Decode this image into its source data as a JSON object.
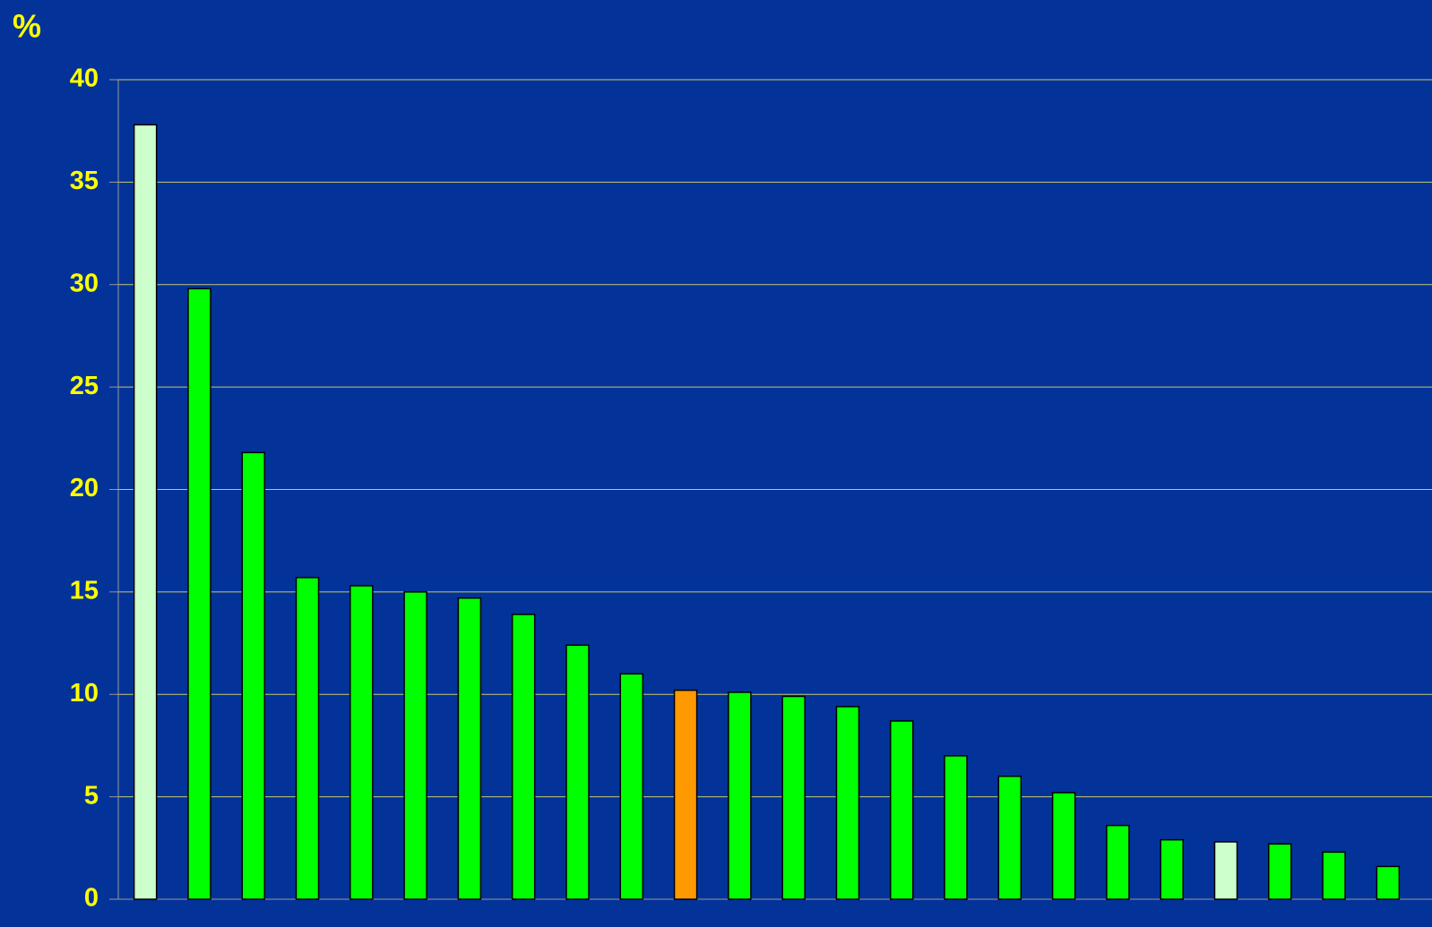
{
  "chart_data": {
    "type": "bar",
    "y_label": "%",
    "categories": [
      null,
      null,
      null,
      null,
      null,
      null,
      null,
      null,
      null,
      null,
      null,
      null,
      null,
      null,
      null,
      null,
      null,
      null,
      null,
      null,
      null,
      null,
      null,
      null
    ],
    "values": [
      37.8,
      29.8,
      21.8,
      15.7,
      15.3,
      15.0,
      14.7,
      13.9,
      12.4,
      11.0,
      10.2,
      10.1,
      9.9,
      9.4,
      8.7,
      7.0,
      6.0,
      5.2,
      3.6,
      2.9,
      2.8,
      2.7,
      2.3,
      1.6
    ],
    "colors": [
      "#ccffcc",
      "#00ff00",
      "#00ff00",
      "#00ff00",
      "#00ff00",
      "#00ff00",
      "#00ff00",
      "#00ff00",
      "#00ff00",
      "#00ff00",
      "#ff9900",
      "#00ff00",
      "#00ff00",
      "#00ff00",
      "#00ff00",
      "#00ff00",
      "#00ff00",
      "#00ff00",
      "#00ff00",
      "#00ff00",
      "#ccffcc",
      "#00ff00",
      "#00ff00",
      "#00ff00"
    ],
    "ylim": [
      0,
      40
    ],
    "yticks": [
      0,
      5,
      10,
      15,
      20,
      25,
      30,
      35,
      40
    ],
    "grid": true
  }
}
